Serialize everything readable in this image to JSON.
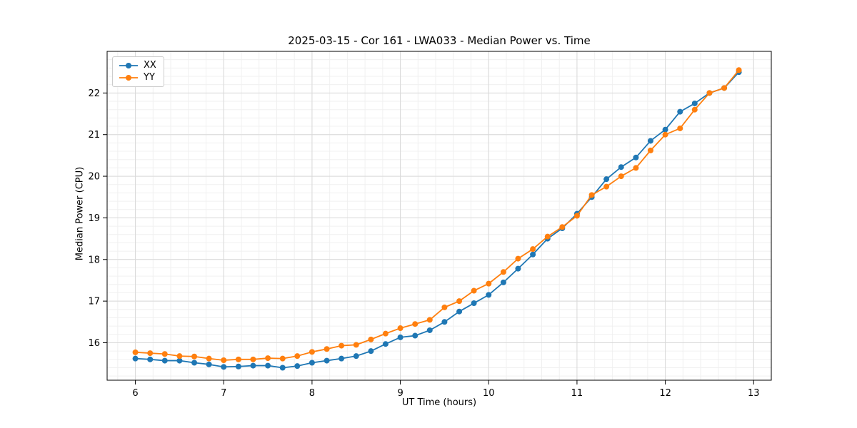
{
  "chart_data": {
    "type": "line",
    "title": "2025-03-15 - Cor 161 - LWA033 - Median Power vs. Time",
    "xlabel": "UT Time (hours)",
    "ylabel": "Median Power (CPU)",
    "xlim": [
      5.68,
      13.2
    ],
    "ylim": [
      15.1,
      23.0
    ],
    "x_ticks": [
      6,
      7,
      8,
      9,
      10,
      11,
      12,
      13
    ],
    "y_ticks": [
      16,
      17,
      18,
      19,
      20,
      21,
      22
    ],
    "x_minor_step": 0.2,
    "y_minor_step": 0.2,
    "grid": true,
    "legend_position": "upper left",
    "x": [
      6.0,
      6.167,
      6.333,
      6.5,
      6.667,
      6.833,
      7.0,
      7.167,
      7.333,
      7.5,
      7.667,
      7.833,
      8.0,
      8.167,
      8.333,
      8.5,
      8.667,
      8.833,
      9.0,
      9.167,
      9.333,
      9.5,
      9.667,
      9.833,
      10.0,
      10.167,
      10.333,
      10.5,
      10.667,
      10.833,
      11.0,
      11.167,
      11.333,
      11.5,
      11.667,
      11.833,
      12.0,
      12.167,
      12.333,
      12.5,
      12.667,
      12.833
    ],
    "series": [
      {
        "name": "XX",
        "color": "#1f77b4",
        "values": [
          15.62,
          15.6,
          15.57,
          15.57,
          15.52,
          15.48,
          15.42,
          15.43,
          15.45,
          15.45,
          15.4,
          15.44,
          15.52,
          15.57,
          15.62,
          15.68,
          15.8,
          15.97,
          16.13,
          16.17,
          16.3,
          16.5,
          16.75,
          16.95,
          17.15,
          17.45,
          17.78,
          18.12,
          18.5,
          18.75,
          19.1,
          19.5,
          19.93,
          20.22,
          20.45,
          20.85,
          21.12,
          21.55,
          21.75,
          22.0,
          22.12,
          22.5
        ]
      },
      {
        "name": "YY",
        "color": "#ff7f0e",
        "values": [
          15.77,
          15.75,
          15.73,
          15.68,
          15.67,
          15.62,
          15.58,
          15.6,
          15.6,
          15.63,
          15.62,
          15.68,
          15.78,
          15.85,
          15.93,
          15.95,
          16.08,
          16.22,
          16.35,
          16.45,
          16.55,
          16.85,
          17.0,
          17.25,
          17.42,
          17.7,
          18.02,
          18.25,
          18.55,
          18.78,
          19.05,
          19.55,
          19.75,
          20.0,
          20.2,
          20.62,
          21.0,
          21.15,
          21.6,
          22.0,
          22.12,
          22.55
        ]
      }
    ]
  }
}
